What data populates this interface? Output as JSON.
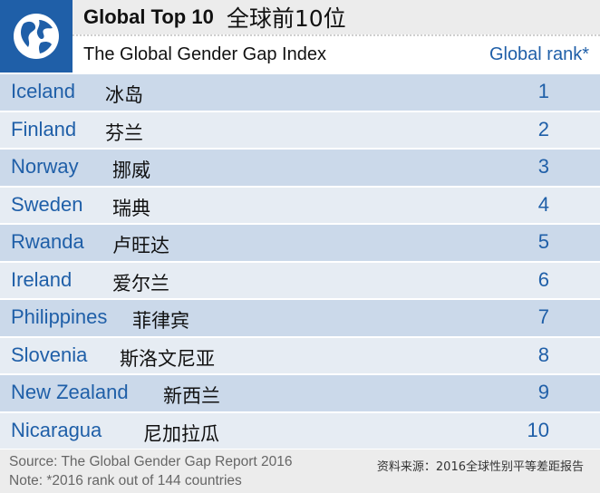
{
  "header": {
    "title_en": "Global Top 10",
    "title_zh": "全球前10位",
    "subtitle": "The Global Gender Gap Index",
    "rank_label": "Global rank*",
    "logo_icon": "globe-icon"
  },
  "colors": {
    "brand_blue": "#1f5fa8",
    "row_dark": "#cbd9ea",
    "row_light": "#e6ecf3",
    "header_gray": "#ececec"
  },
  "rows": [
    {
      "en": "Iceland",
      "zh": "冰岛",
      "rank": "1"
    },
    {
      "en": "Finland",
      "zh": "芬兰",
      "rank": "2"
    },
    {
      "en": "Norway",
      "zh": "挪威",
      "rank": "3"
    },
    {
      "en": "Sweden",
      "zh": "瑞典",
      "rank": "4"
    },
    {
      "en": "Rwanda",
      "zh": "卢旺达",
      "rank": "5"
    },
    {
      "en": "Ireland",
      "zh": "爱尔兰",
      "rank": "6"
    },
    {
      "en": "Philippines",
      "zh": "菲律宾",
      "rank": "7"
    },
    {
      "en": "Slovenia",
      "zh": "斯洛文尼亚",
      "rank": "8"
    },
    {
      "en": "New Zealand",
      "zh": "新西兰",
      "rank": "9"
    },
    {
      "en": "Nicaragua",
      "zh": "尼加拉瓜",
      "rank": "10"
    }
  ],
  "footer": {
    "source": "Source: The Global Gender Gap Report 2016",
    "note": "Note: *2016 rank out of 144 countries",
    "source_zh": "资料来源：2016全球性别平等差距报告"
  }
}
